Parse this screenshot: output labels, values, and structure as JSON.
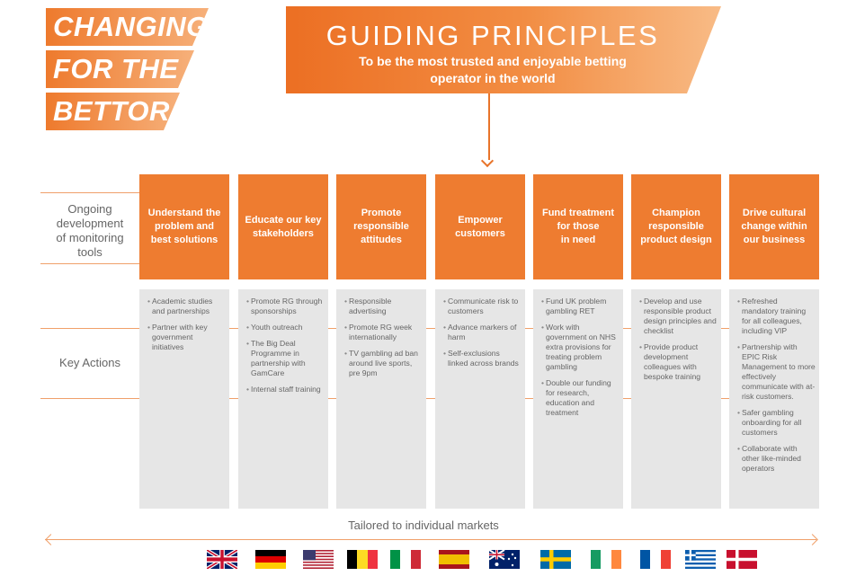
{
  "tagline": [
    "CHANGING",
    "FOR THE",
    "BETTOR"
  ],
  "hero": {
    "title": "GUIDING PRINCIPLES",
    "subtitle_line1": "To be the most trusted and enjoyable betting",
    "subtitle_line2": "operator in the world"
  },
  "side_labels": {
    "monitoring": [
      "Ongoing",
      "development",
      "of monitoring",
      "tools"
    ],
    "key_actions": "Key Actions"
  },
  "columns": [
    {
      "title_lines": [
        "Understand the",
        "problem and",
        "best solutions"
      ],
      "actions": [
        "Academic studies and partnerships",
        "Partner with key government initiatives"
      ]
    },
    {
      "title_lines": [
        "Educate our key",
        "stakeholders"
      ],
      "actions": [
        "Promote RG through sponsorships",
        "Youth outreach",
        "The Big Deal Programme in partnership with GamCare",
        "Internal staff training"
      ]
    },
    {
      "title_lines": [
        "Promote",
        "responsible",
        "attitudes"
      ],
      "actions": [
        "Responsible advertising",
        "Promote RG week internationally",
        "TV gambling ad ban around live sports, pre 9pm"
      ]
    },
    {
      "title_lines": [
        "Empower",
        "customers"
      ],
      "actions": [
        "Communicate risk to customers",
        "Advance markers of harm",
        "Self-exclusions linked across brands"
      ]
    },
    {
      "title_lines": [
        "Fund treatment",
        "for those",
        "in need"
      ],
      "actions": [
        "Fund UK problem gambling RET",
        "Work with government on NHS extra provisions for treating problem gambling",
        "Double our funding for research, education and treatment"
      ]
    },
    {
      "title_lines": [
        "Champion",
        "responsible",
        "product design"
      ],
      "actions": [
        "Develop and use responsible product design principles and checklist",
        "Provide product development colleagues with bespoke training"
      ]
    },
    {
      "title_lines": [
        "Drive cultural",
        "change within",
        "our business"
      ],
      "actions": [
        "Refreshed mandatory training for all colleagues, including VIP",
        "Partnership with EPIC Risk Management to more effectively communicate with at-risk customers.",
        "Safer gambling onboarding for all customers",
        "Collaborate with other like-minded operators"
      ]
    }
  ],
  "footer": {
    "label": "Tailored to individual markets"
  },
  "flags": [
    "united-kingdom",
    "germany",
    "united-states",
    "belgium",
    "italy",
    "spain",
    "australia",
    "sweden",
    "ireland",
    "france",
    "greece",
    "denmark"
  ],
  "colors": {
    "accent": "#ee7c30",
    "panel": "#e6e6e6",
    "rule": "#f0a06a"
  }
}
